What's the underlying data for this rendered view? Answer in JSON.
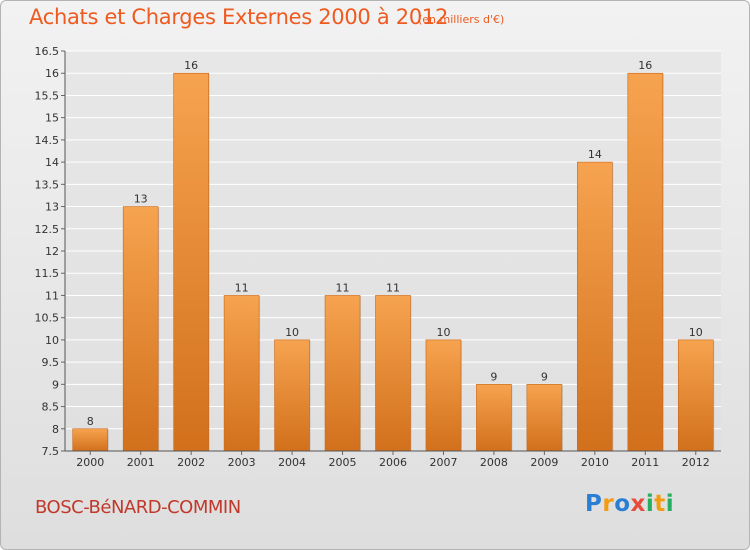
{
  "title": "Achats et Charges Externes 2000 à 2012",
  "subtitle": "(en milliers d'€)",
  "commune": "BOSC-BéNARD-COMMIN",
  "logo": {
    "letters": [
      {
        "ch": "P",
        "color": "#2a7fd4"
      },
      {
        "ch": "r",
        "color": "#f39c12"
      },
      {
        "ch": "o",
        "color": "#2a7fd4"
      },
      {
        "ch": "x",
        "color": "#e74c3c"
      },
      {
        "ch": "i",
        "color": "#27ae60"
      },
      {
        "ch": "t",
        "color": "#f39c12"
      },
      {
        "ch": "i",
        "color": "#27ae60"
      }
    ]
  },
  "colors": {
    "bar_light": "#f6a34f",
    "bar_dark": "#d2701c",
    "title": "#ee5a1f",
    "commune": "#c0392b"
  },
  "chart_data": {
    "type": "bar",
    "title": "Achats et Charges Externes 2000 à 2012",
    "subtitle": "(en milliers d'€)",
    "categories": [
      "2000",
      "2001",
      "2002",
      "2003",
      "2004",
      "2005",
      "2006",
      "2007",
      "2008",
      "2009",
      "2010",
      "2011",
      "2012"
    ],
    "values": [
      8,
      13,
      16,
      11,
      10,
      11,
      11,
      10,
      9,
      9,
      14,
      16,
      10
    ],
    "ylim": [
      7.5,
      16.5
    ],
    "yticks": [
      7.5,
      8,
      8.5,
      9,
      9.5,
      10,
      10.5,
      11,
      11.5,
      12,
      12.5,
      13,
      13.5,
      14,
      14.5,
      15,
      15.5,
      16,
      16.5
    ],
    "ytick_labels": [
      "7.5",
      "8",
      "8.5",
      "9",
      "9.5",
      "10",
      "10.5",
      "11",
      "11.5",
      "12",
      "12.5",
      "13",
      "13.5",
      "14",
      "14.5",
      "15",
      "15.5",
      "16",
      "16.5"
    ],
    "grid": true,
    "legend": "none"
  }
}
